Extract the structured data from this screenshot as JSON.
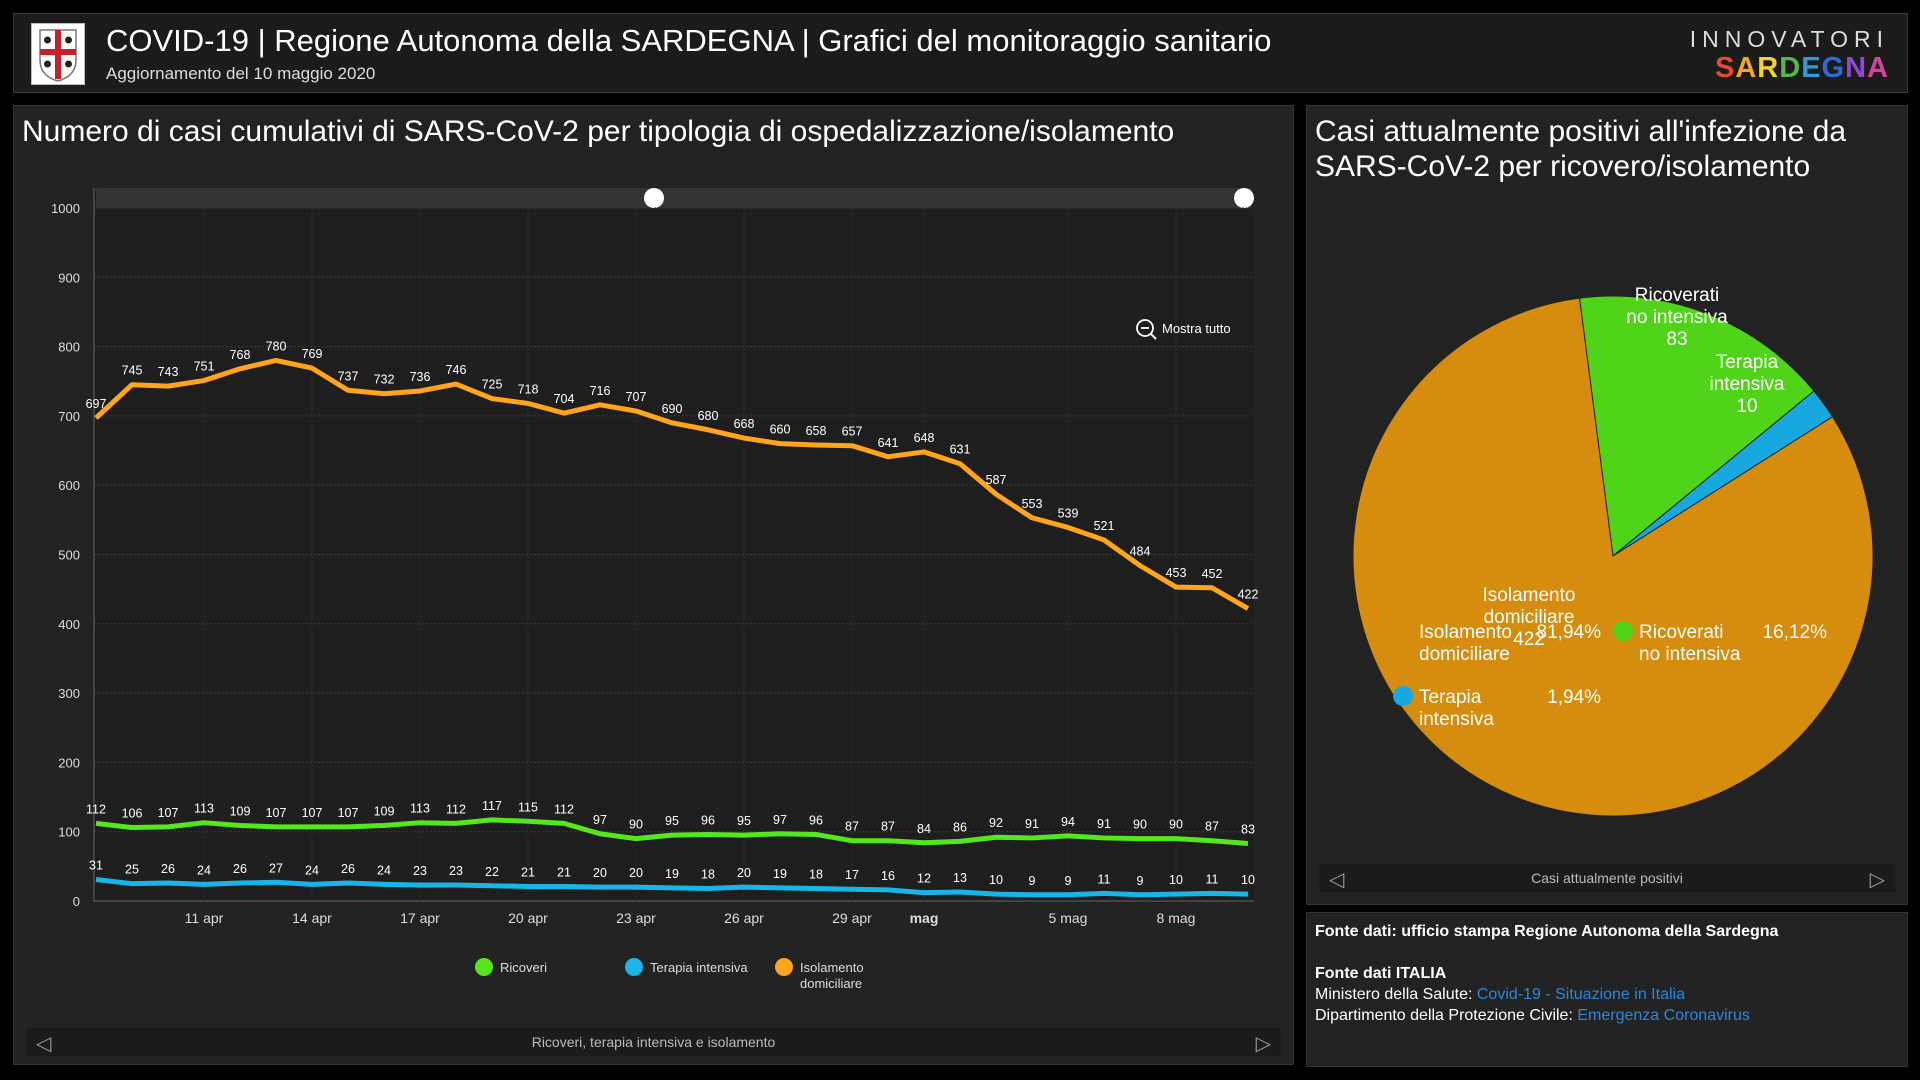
{
  "header": {
    "title": "COVID-19 | Regione Autonoma della SARDEGNA | Grafici del monitoraggio sanitario",
    "subtitle": "Aggiornamento del 10 maggio 2020",
    "brand_top": "INNOVATORI",
    "brand_letters": [
      "S",
      "A",
      "R",
      "D",
      "E",
      "G",
      "N",
      "A"
    ]
  },
  "left": {
    "title": "Numero di casi cumulativi di SARS-CoV-2 per tipologia di ospedalizzazione/isolamento",
    "zoom_label": "Mostra tutto",
    "footer_label": "Ricoveri, terapia intensiva e isolamento"
  },
  "right": {
    "title": "Casi attualmente positivi all'infezione da SARS-CoV-2 per ricovero/isolamento",
    "footer_label": "Casi attualmente positivi"
  },
  "sources": {
    "line1": "Fonte dati: ufficio stampa Regione Autonoma della Sardegna",
    "line2": "Fonte dati ITALIA",
    "line3_prefix": "Ministero della Salute: ",
    "line3_link": "Covid-19 - Situazione in Italia",
    "line4_prefix": "Dipartimento della Protezione Civile: ",
    "line4_link": "Emergenza Coronavirus"
  },
  "colors": {
    "ricoveri": "#55e61c",
    "terapia": "#18b6e8",
    "isolamento": "#ffa41b",
    "pie_isolamento": "#d68c0c"
  },
  "chart_data": [
    {
      "type": "line",
      "title": "Numero di casi cumulativi di SARS-CoV-2 per tipologia di ospedalizzazione/isolamento",
      "ylim": [
        0,
        1000
      ],
      "yticks": [
        0,
        100,
        200,
        300,
        400,
        500,
        600,
        700,
        800,
        900,
        1000
      ],
      "x": [
        "8 apr",
        "9 apr",
        "10 apr",
        "11 apr",
        "12 apr",
        "13 apr",
        "14 apr",
        "15 apr",
        "16 apr",
        "17 apr",
        "18 apr",
        "19 apr",
        "20 apr",
        "21 apr",
        "22 apr",
        "23 apr",
        "24 apr",
        "25 apr",
        "26 apr",
        "27 apr",
        "28 apr",
        "29 apr",
        "30 apr",
        "1 mag",
        "2 mag",
        "3 mag",
        "4 mag",
        "5 mag",
        "6 mag",
        "7 mag",
        "8 mag",
        "9 mag",
        "10 mag"
      ],
      "xtick_labels": [
        "11 apr",
        "14 apr",
        "17 apr",
        "20 apr",
        "23 apr",
        "26 apr",
        "29 apr",
        "mag",
        "5 mag",
        "8 mag"
      ],
      "grid": true,
      "legend_position": "bottom",
      "series": [
        {
          "name": "Ricoveri",
          "color_key": "ricoveri",
          "values": [
            112,
            106,
            107,
            113,
            109,
            107,
            107,
            107,
            109,
            113,
            112,
            117,
            115,
            112,
            97,
            90,
            95,
            96,
            95,
            97,
            96,
            87,
            87,
            84,
            86,
            92,
            91,
            94,
            91,
            90,
            90,
            87,
            83
          ]
        },
        {
          "name": "Terapia intensiva",
          "color_key": "terapia",
          "values": [
            31,
            25,
            26,
            24,
            26,
            27,
            24,
            26,
            24,
            23,
            23,
            22,
            21,
            21,
            20,
            20,
            19,
            18,
            20,
            19,
            18,
            17,
            16,
            12,
            13,
            10,
            9,
            9,
            11,
            9,
            10,
            11,
            10
          ]
        },
        {
          "name": "Isolamento domiciliare",
          "color_key": "isolamento",
          "values": [
            697,
            745,
            743,
            751,
            768,
            780,
            769,
            737,
            732,
            736,
            746,
            725,
            718,
            704,
            716,
            707,
            690,
            680,
            668,
            660,
            658,
            657,
            641,
            648,
            631,
            587,
            553,
            539,
            521,
            484,
            453,
            452,
            422
          ]
        }
      ]
    },
    {
      "type": "pie",
      "title": "Casi attualmente positivi all'infezione da SARS-CoV-2 per ricovero/isolamento",
      "legend_position": "bottom",
      "slices": [
        {
          "label": "Ricoverati no intensiva",
          "value": 83,
          "percent": "16,12%",
          "color": "#4fd41a"
        },
        {
          "label": "Terapia intensiva",
          "value": 10,
          "percent": "1,94%",
          "color": "#18a8e0"
        },
        {
          "label": "Isolamento domiciliare",
          "value": 422,
          "percent": "81,94%",
          "color": "#d68c0c"
        }
      ]
    }
  ]
}
